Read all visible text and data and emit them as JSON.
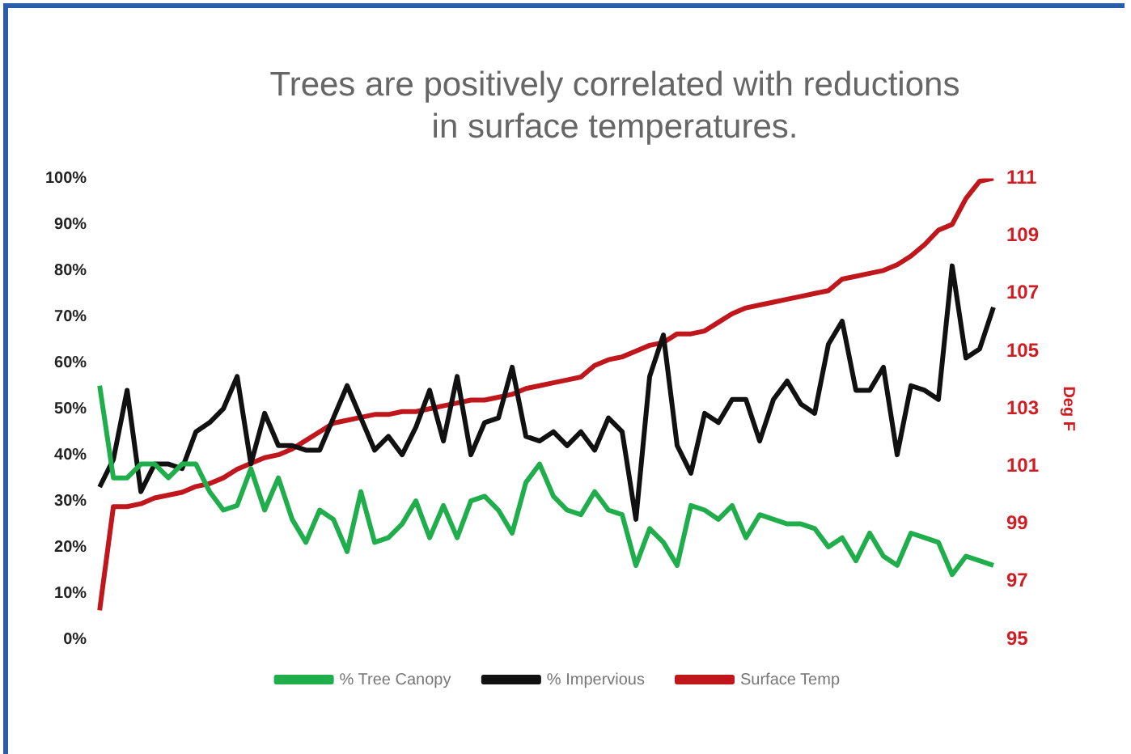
{
  "chart_data": {
    "type": "line",
    "title": "Trees are positively correlated with reductions in surface temperatures.",
    "y2label": "Deg F",
    "categories": [
      null,
      null,
      null,
      null,
      null,
      null,
      null,
      null,
      null,
      null,
      null,
      null,
      null,
      null,
      null,
      null,
      null,
      null,
      null,
      null,
      null,
      null,
      null,
      null,
      null,
      null,
      null,
      null,
      null,
      null,
      null,
      null,
      null,
      null,
      null,
      null,
      null,
      null,
      null,
      null,
      null,
      null,
      null,
      null,
      null,
      null,
      null,
      null,
      null,
      null,
      null,
      null,
      null,
      null,
      null,
      null,
      null,
      null,
      null,
      null,
      null,
      null,
      null,
      null,
      null,
      null
    ],
    "series": [
      {
        "name": "% Tree Canopy",
        "color": "#1fae4b",
        "values": [
          55,
          35,
          35,
          38,
          38,
          35,
          38,
          38,
          32,
          28,
          29,
          37,
          28,
          35,
          26,
          21,
          28,
          26,
          19,
          32,
          21,
          22,
          25,
          30,
          22,
          29,
          22,
          30,
          31,
          28,
          23,
          34,
          38,
          31,
          28,
          27,
          32,
          28,
          27,
          16,
          24,
          21,
          16,
          29,
          28,
          26,
          29,
          22,
          27,
          26,
          25,
          25,
          24,
          20,
          22,
          17,
          23,
          18,
          16,
          23,
          22,
          21,
          14,
          18,
          17,
          16
        ]
      },
      {
        "name": "% Impervious",
        "color": "#111111",
        "values": [
          33,
          39,
          54,
          32,
          38,
          38,
          37,
          45,
          47,
          50,
          57,
          38,
          49,
          42,
          42,
          41,
          41,
          48,
          55,
          48,
          41,
          44,
          40,
          46,
          54,
          43,
          57,
          40,
          47,
          48,
          59,
          44,
          43,
          45,
          42,
          45,
          41,
          48,
          45,
          26,
          57,
          66,
          42,
          36,
          49,
          47,
          52,
          52,
          43,
          52,
          56,
          51,
          49,
          64,
          69,
          54,
          54,
          59,
          40,
          55,
          54,
          52,
          81,
          61,
          63,
          72
        ]
      },
      {
        "name": "Surface Temp",
        "color": "#c0171d",
        "axis": "y2",
        "values": [
          96,
          99.6,
          99.6,
          99.7,
          99.9,
          100.0,
          100.1,
          100.3,
          100.4,
          100.6,
          100.9,
          101.1,
          101.3,
          101.4,
          101.6,
          101.9,
          102.2,
          102.5,
          102.6,
          102.7,
          102.8,
          102.8,
          102.9,
          102.9,
          103.0,
          103.1,
          103.2,
          103.3,
          103.3,
          103.4,
          103.5,
          103.7,
          103.8,
          103.9,
          104.0,
          104.1,
          104.5,
          104.7,
          104.8,
          105.0,
          105.2,
          105.3,
          105.6,
          105.6,
          105.7,
          106.0,
          106.3,
          106.5,
          106.6,
          106.7,
          106.8,
          106.9,
          107.0,
          107.1,
          107.5,
          107.6,
          107.7,
          107.8,
          108.0,
          108.3,
          108.7,
          109.2,
          109.4,
          110.3,
          110.9,
          111.0
        ]
      }
    ],
    "ylim": [
      0,
      100
    ],
    "yticks": [
      {
        "value": 0,
        "label": "0%"
      },
      {
        "value": 10,
        "label": "10%"
      },
      {
        "value": 20,
        "label": "20%"
      },
      {
        "value": 30,
        "label": "30%"
      },
      {
        "value": 40,
        "label": "40%"
      },
      {
        "value": 50,
        "label": "50%"
      },
      {
        "value": 60,
        "label": "60%"
      },
      {
        "value": 70,
        "label": "70%"
      },
      {
        "value": 80,
        "label": "80%"
      },
      {
        "value": 90,
        "label": "90%"
      },
      {
        "value": 100,
        "label": "100%"
      }
    ],
    "y2lim": [
      95,
      111
    ],
    "y2ticks": [
      95,
      97,
      99,
      101,
      103,
      105,
      107,
      109,
      111
    ],
    "grid": false,
    "legend": "bottom",
    "marker": "none",
    "line_style": "solid"
  }
}
